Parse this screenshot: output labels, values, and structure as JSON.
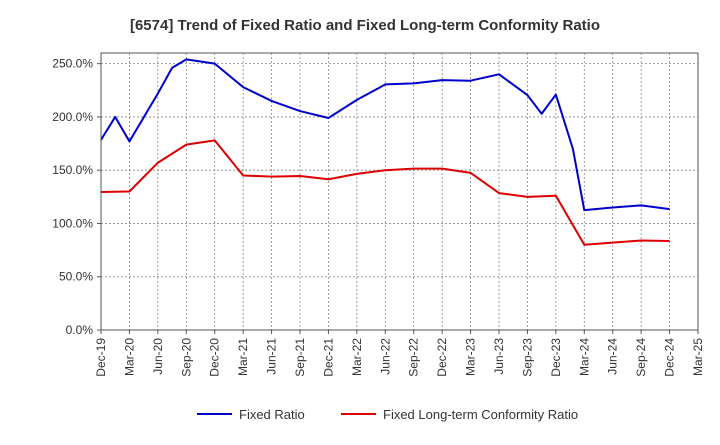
{
  "chart_data": {
    "type": "line",
    "title": "[6574]  Trend of Fixed Ratio and Fixed Long-term Conformity Ratio",
    "xlabel": "",
    "ylabel": "",
    "ylim": [
      0,
      260
    ],
    "yticks": [
      "0.0%",
      "50.0%",
      "100.0%",
      "150.0%",
      "200.0%",
      "250.0%"
    ],
    "ytick_values": [
      0,
      50,
      100,
      150,
      200,
      250
    ],
    "xticks": [
      "Dec-19",
      "Mar-20",
      "Jun-20",
      "Sep-20",
      "Dec-20",
      "Mar-21",
      "Jun-21",
      "Sep-21",
      "Dec-21",
      "Mar-22",
      "Jun-22",
      "Sep-22",
      "Dec-22",
      "Mar-23",
      "Jun-23",
      "Sep-23",
      "Dec-23",
      "Mar-24",
      "Jun-24",
      "Sep-24",
      "Dec-24",
      "Mar-25"
    ],
    "x": [
      "Dec-19",
      "Mar-20",
      "Jun-20",
      "Sep-20",
      "Dec-20",
      "Mar-21",
      "Jun-21",
      "Sep-21",
      "Dec-21",
      "Mar-22",
      "Jun-22",
      "Sep-22",
      "Dec-22",
      "Mar-23",
      "Jun-23",
      "Sep-23",
      "Dec-23",
      "Mar-24",
      "Jun-24",
      "Sep-24",
      "Dec-24"
    ],
    "series": [
      {
        "name": "Fixed Ratio",
        "color": "#0000cc",
        "values": [
          178.5,
          177.0,
          222.0,
          254.0,
          250.0,
          228.0,
          215.0,
          205.5,
          199.0,
          216.0,
          230.5,
          231.5,
          234.5,
          234.0,
          240.0,
          220.5,
          221.0,
          112.5,
          115.0,
          117.0,
          113.5
        ],
        "extra_points": [
          [
            15.5,
            203.0
          ],
          [
            16.6,
            170.0
          ],
          [
            2.5,
            246.0
          ],
          [
            0.5,
            200.0
          ]
        ]
      },
      {
        "name": "Fixed Long-term Conformity Ratio",
        "color": "#dd0000",
        "values": [
          129.5,
          130.0,
          157.0,
          174.0,
          178.0,
          145.0,
          144.0,
          144.5,
          141.5,
          146.5,
          150.0,
          151.5,
          151.5,
          147.5,
          128.5,
          125.0,
          126.0,
          80.0,
          82.0,
          84.0,
          83.5
        ]
      }
    ],
    "grid": true,
    "legend_position": "bottom"
  }
}
